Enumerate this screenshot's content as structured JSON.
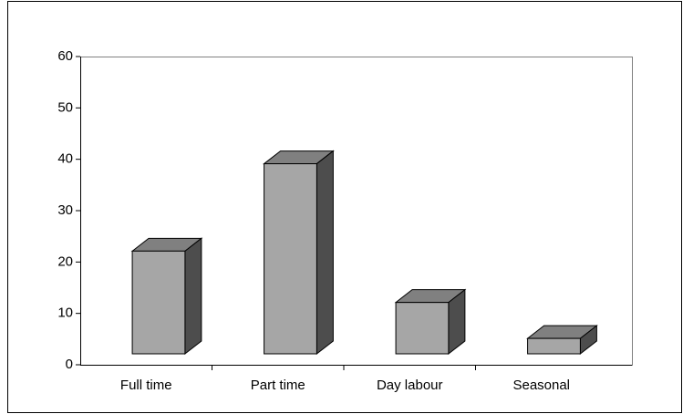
{
  "chart_data": {
    "type": "bar3d",
    "categories": [
      "Full time",
      "Part time",
      "Day labour",
      "Seasonal"
    ],
    "values": [
      20,
      37,
      10,
      3
    ],
    "color": "#a6a6a6",
    "ylim": [
      0,
      60
    ],
    "yticks": [
      0,
      10,
      20,
      30,
      40,
      50,
      60
    ]
  }
}
